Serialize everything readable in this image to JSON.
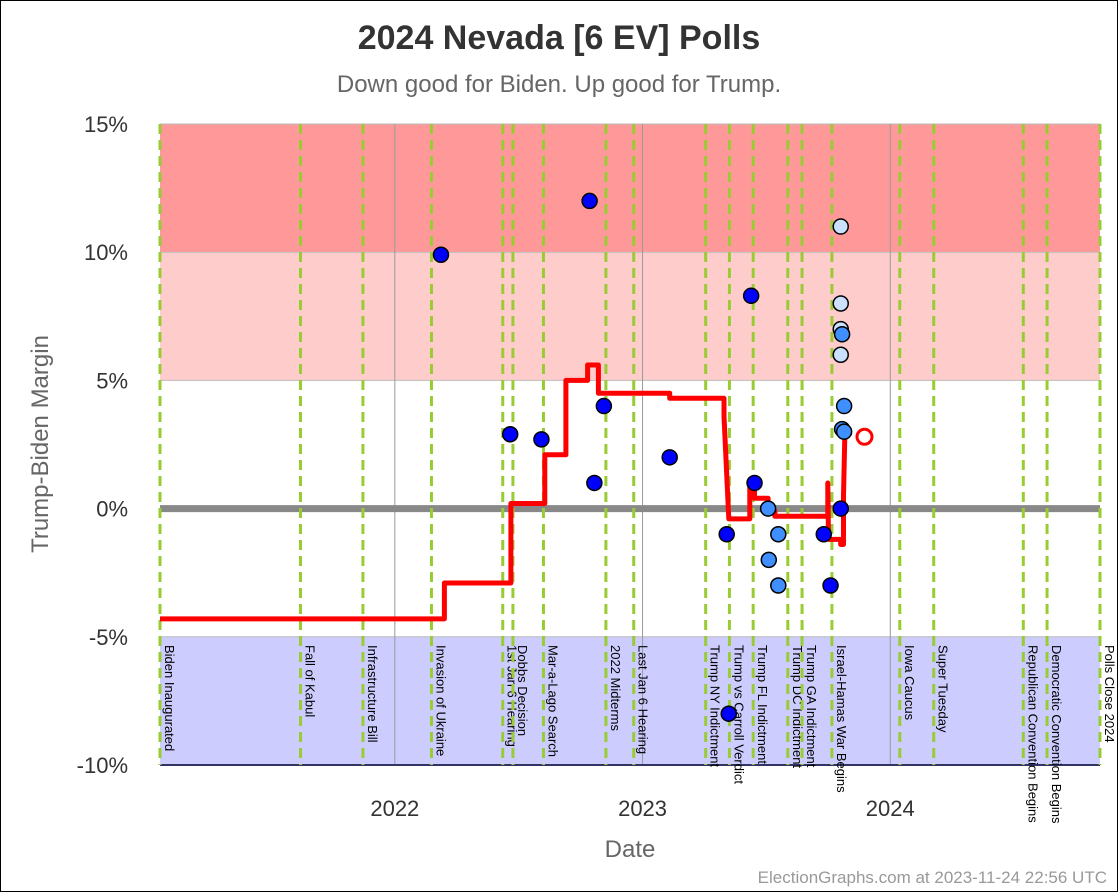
{
  "chart_data": {
    "type": "scatter",
    "title": "2024 Nevada [6 EV] Polls",
    "subtitle": "Down good for Biden. Up good for Trump.",
    "xlabel": "Date",
    "ylabel": "Trump-Biden Margin",
    "ylim": [
      -10,
      15
    ],
    "xlim": [
      "2021-01-20",
      "2024-11-05"
    ],
    "yticks": [
      {
        "value": 15,
        "label": "15%"
      },
      {
        "value": 10,
        "label": "10%"
      },
      {
        "value": 5,
        "label": "5%"
      },
      {
        "value": 0,
        "label": "0%"
      },
      {
        "value": -5,
        "label": "-5%"
      },
      {
        "value": -10,
        "label": "-10%"
      }
    ],
    "xticks": [
      {
        "date": "2022-01-01",
        "label": "2022"
      },
      {
        "date": "2023-01-01",
        "label": "2023"
      },
      {
        "date": "2024-01-01",
        "label": "2024"
      }
    ],
    "bands": [
      {
        "from": 10,
        "to": 15,
        "color": "#ff9999"
      },
      {
        "from": 5,
        "to": 10,
        "color": "#ffcccc"
      },
      {
        "from": -10,
        "to": -5,
        "color": "#ccccff"
      }
    ],
    "colors": {
      "poll_dark": "#0000ff",
      "poll_light": "#cce0ff",
      "poll_mid": "#3f8fff",
      "average_line": "#ff0000",
      "event_line": "#99cc33",
      "zero_line": "#888888"
    },
    "events": [
      {
        "date": "2021-01-20",
        "label": "Biden Inaugurated"
      },
      {
        "date": "2021-08-15",
        "label": "Fall of Kabul"
      },
      {
        "date": "2021-11-15",
        "label": "Infrastructure Bill"
      },
      {
        "date": "2022-02-24",
        "label": "Invasion of Ukraine"
      },
      {
        "date": "2022-06-09",
        "label": "1st Jan 6 Hearing"
      },
      {
        "date": "2022-06-24",
        "label": "Dobbs Decision"
      },
      {
        "date": "2022-08-08",
        "label": "Mar-a-Lago Search"
      },
      {
        "date": "2022-11-08",
        "label": "2022 Midterms"
      },
      {
        "date": "2022-12-19",
        "label": "Last Jan 6 Hearing"
      },
      {
        "date": "2023-04-04",
        "label": "Trump NY Indictment"
      },
      {
        "date": "2023-05-09",
        "label": "Trump vs Carroll Verdict"
      },
      {
        "date": "2023-06-13",
        "label": "Trump FL Indictment"
      },
      {
        "date": "2023-08-03",
        "label": "Trump DC Indictment"
      },
      {
        "date": "2023-08-24",
        "label": "Trump GA Indictment"
      },
      {
        "date": "2023-10-07",
        "label": "Israel-Hamas War Begins"
      },
      {
        "date": "2024-01-15",
        "label": "Iowa Caucus"
      },
      {
        "date": "2024-03-05",
        "label": "Super Tuesday"
      },
      {
        "date": "2024-07-15",
        "label": "Republican Convention Begins"
      },
      {
        "date": "2024-08-19",
        "label": "Democratic Convention Begins"
      },
      {
        "date": "2024-11-05",
        "label": "Polls Close 2024"
      }
    ],
    "series": [
      {
        "name": "",
        "kind": "points",
        "values": [
          {
            "x": "2022-03-10",
            "y": 9.9,
            "shade": "dark"
          },
          {
            "x": "2022-06-20",
            "y": 2.9,
            "shade": "dark"
          },
          {
            "x": "2022-08-05",
            "y": 2.7,
            "shade": "dark"
          },
          {
            "x": "2022-10-15",
            "y": 12.0,
            "shade": "dark"
          },
          {
            "x": "2022-10-22",
            "y": 1.0,
            "shade": "dark"
          },
          {
            "x": "2022-11-05",
            "y": 4.0,
            "shade": "dark"
          },
          {
            "x": "2023-02-10",
            "y": 2.0,
            "shade": "dark"
          },
          {
            "x": "2023-05-05",
            "y": -1.0,
            "shade": "dark"
          },
          {
            "x": "2023-05-08",
            "y": -8.0,
            "shade": "dark"
          },
          {
            "x": "2023-06-10",
            "y": 8.3,
            "shade": "dark"
          },
          {
            "x": "2023-06-15",
            "y": 1.0,
            "shade": "dark"
          },
          {
            "x": "2023-07-05",
            "y": 0.0,
            "shade": "mid"
          },
          {
            "x": "2023-07-06",
            "y": -2.0,
            "shade": "mid"
          },
          {
            "x": "2023-07-20",
            "y": -1.0,
            "shade": "mid"
          },
          {
            "x": "2023-07-20",
            "y": -3.0,
            "shade": "mid"
          },
          {
            "x": "2023-09-25",
            "y": -1.0,
            "shade": "dark"
          },
          {
            "x": "2023-10-05",
            "y": -3.0,
            "shade": "dark"
          },
          {
            "x": "2023-10-20",
            "y": 0.0,
            "shade": "dark"
          },
          {
            "x": "2023-10-20",
            "y": 11.0,
            "shade": "light"
          },
          {
            "x": "2023-10-20",
            "y": 8.0,
            "shade": "light"
          },
          {
            "x": "2023-10-20",
            "y": 7.0,
            "shade": "light"
          },
          {
            "x": "2023-10-22",
            "y": 6.8,
            "shade": "mid"
          },
          {
            "x": "2023-10-20",
            "y": 6.0,
            "shade": "light"
          },
          {
            "x": "2023-10-25",
            "y": 4.0,
            "shade": "mid"
          },
          {
            "x": "2023-10-22",
            "y": 3.1,
            "shade": "mid"
          },
          {
            "x": "2023-10-25",
            "y": 3.0,
            "shade": "mid"
          }
        ]
      },
      {
        "name": "",
        "kind": "average",
        "values": [
          {
            "x": "2021-01-20",
            "y": -4.3
          },
          {
            "x": "2022-03-15",
            "y": -4.3
          },
          {
            "x": "2022-03-15",
            "y": -2.9
          },
          {
            "x": "2022-06-21",
            "y": -2.9
          },
          {
            "x": "2022-06-21",
            "y": 0.2
          },
          {
            "x": "2022-08-10",
            "y": 0.2
          },
          {
            "x": "2022-08-10",
            "y": 2.1
          },
          {
            "x": "2022-09-10",
            "y": 2.1
          },
          {
            "x": "2022-09-10",
            "y": 5.0
          },
          {
            "x": "2022-10-12",
            "y": 5.0
          },
          {
            "x": "2022-10-12",
            "y": 5.6
          },
          {
            "x": "2022-10-28",
            "y": 5.6
          },
          {
            "x": "2022-10-28",
            "y": 4.5
          },
          {
            "x": "2023-02-10",
            "y": 4.5
          },
          {
            "x": "2023-02-10",
            "y": 4.3
          },
          {
            "x": "2023-05-01",
            "y": 4.3
          },
          {
            "x": "2023-05-01",
            "y": 3.6
          },
          {
            "x": "2023-05-08",
            "y": -0.4
          },
          {
            "x": "2023-06-08",
            "y": -0.4
          },
          {
            "x": "2023-06-08",
            "y": 0.8
          },
          {
            "x": "2023-06-15",
            "y": 0.8
          },
          {
            "x": "2023-06-15",
            "y": 0.4
          },
          {
            "x": "2023-07-05",
            "y": 0.4
          },
          {
            "x": "2023-07-05",
            "y": -0.1
          },
          {
            "x": "2023-07-15",
            "y": -0.1
          },
          {
            "x": "2023-07-15",
            "y": -0.3
          },
          {
            "x": "2023-10-01",
            "y": -0.3
          },
          {
            "x": "2023-10-01",
            "y": 1.0
          },
          {
            "x": "2023-10-02",
            "y": -1.2
          },
          {
            "x": "2023-10-20",
            "y": -1.2
          },
          {
            "x": "2023-10-20",
            "y": -1.4
          },
          {
            "x": "2023-10-24",
            "y": -1.4
          },
          {
            "x": "2023-10-24",
            "y": 0.5
          },
          {
            "x": "2023-10-26",
            "y": 2.8
          }
        ],
        "end_marker": {
          "x": "2023-11-24",
          "y": 2.8
        }
      }
    ]
  },
  "credit": "ElectionGraphs.com at 2023-11-24 22:56 UTC"
}
